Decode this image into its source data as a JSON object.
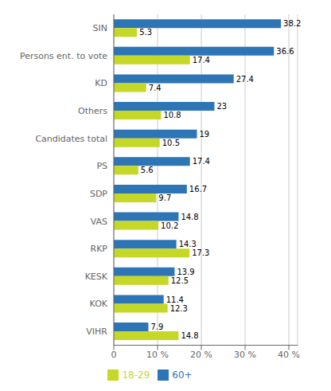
{
  "chart_data": {
    "type": "bar",
    "orientation": "horizontal",
    "categories": [
      "SIN",
      "Persons ent. to vote",
      "KD",
      "Others",
      "Candidates total",
      "PS",
      "SDP",
      "VAS",
      "RKP",
      "KESK",
      "KOK",
      "VIHR"
    ],
    "series": [
      {
        "name": "60+",
        "color": "#2E75B6",
        "values": [
          38.2,
          36.6,
          27.4,
          23,
          19,
          17.4,
          16.7,
          14.8,
          14.3,
          13.9,
          11.4,
          7.9
        ]
      },
      {
        "name": "18-29",
        "color": "#C5D827",
        "values": [
          5.3,
          17.4,
          7.4,
          10.8,
          10.5,
          5.6,
          9.7,
          10.2,
          17.3,
          12.5,
          12.3,
          14.8
        ]
      }
    ],
    "xlim": [
      0,
      42
    ],
    "xticks": [
      0,
      {
        "value": 10,
        "label": "10 %"
      },
      {
        "value": 20,
        "label": "20 %"
      },
      {
        "value": 30,
        "label": "30 %"
      },
      {
        "value": 40,
        "label": "40 %"
      }
    ],
    "grid": true,
    "data_labels": true,
    "legend": "bottom"
  }
}
